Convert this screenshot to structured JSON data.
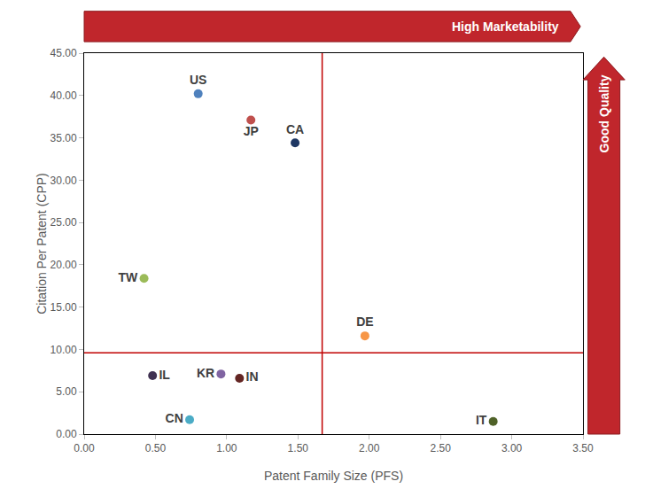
{
  "chart_data": {
    "type": "scatter",
    "x_label": "Patent Family Size (PFS)",
    "y_label": "Citation Per Patent (CPP)",
    "labels": [
      "US",
      "JP",
      "CA",
      "TW",
      "DE",
      "IL",
      "KR",
      "IN",
      "CN",
      "IT"
    ],
    "x": [
      0.8,
      1.17,
      1.48,
      0.42,
      1.97,
      0.48,
      0.96,
      1.09,
      0.74,
      2.87
    ],
    "values": [
      40.2,
      37.1,
      34.4,
      18.4,
      11.6,
      6.9,
      7.1,
      6.6,
      1.7,
      1.5
    ],
    "colors": [
      "#4f81bd",
      "#c0504d",
      "#1f3864",
      "#9bbb59",
      "#f79646",
      "#403151",
      "#8064a2",
      "#632523",
      "#4bacc6",
      "#4f6228"
    ],
    "xlim": [
      0,
      3.5
    ],
    "ylim": [
      0,
      45
    ],
    "xticks": [
      {
        "value": 0,
        "label": "0.00"
      },
      {
        "value": 0.5,
        "label": "0.50"
      },
      {
        "value": 1,
        "label": "1.00"
      },
      {
        "value": 1.5,
        "label": "1.50"
      },
      {
        "value": 2,
        "label": "2.00"
      },
      {
        "value": 2.5,
        "label": "2.50"
      },
      {
        "value": 3,
        "label": "3.00"
      },
      {
        "value": 3.5,
        "label": "3.50"
      }
    ],
    "yticks": [
      {
        "value": 0,
        "label": "0.00"
      },
      {
        "value": 5,
        "label": "5.00"
      },
      {
        "value": 10,
        "label": "10.00"
      },
      {
        "value": 15,
        "label": "15.00"
      },
      {
        "value": 20,
        "label": "20.00"
      },
      {
        "value": 25,
        "label": "25.00"
      },
      {
        "value": 30,
        "label": "30.00"
      },
      {
        "value": 35,
        "label": "35.00"
      },
      {
        "value": 40,
        "label": "40.00"
      },
      {
        "value": 45,
        "label": "45.00"
      }
    ],
    "grid": false,
    "reference_lines": {
      "x": 1.67,
      "y": 9.6
    },
    "annotations": [
      {
        "text": "High Marketability"
      },
      {
        "text": "Good Quality"
      }
    ]
  }
}
